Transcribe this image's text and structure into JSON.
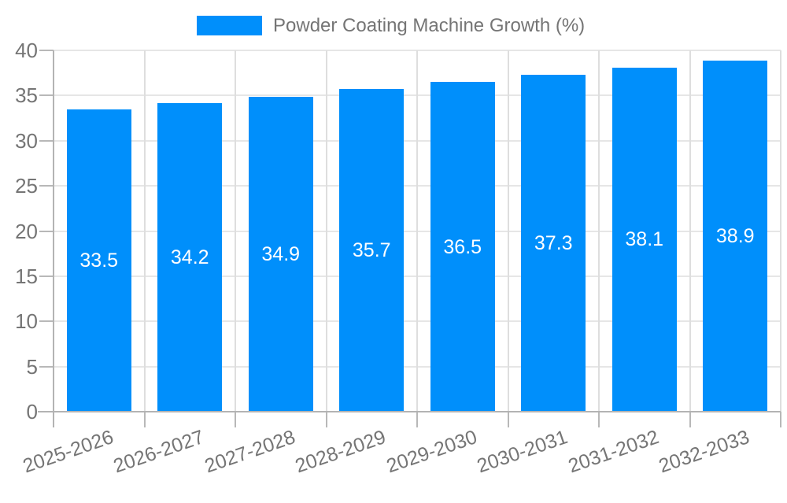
{
  "legend": {
    "label": "Powder Coating Machine Growth (%)",
    "swatch_color": "#008FFB"
  },
  "chart_data": {
    "type": "bar",
    "title": "",
    "legend_position": "top",
    "grid": true,
    "categories": [
      "2025-2026",
      "2026-2027",
      "2027-2028",
      "2028-2029",
      "2029-2030",
      "2030-2031",
      "2031-2032",
      "2032-2033"
    ],
    "series": [
      {
        "name": "Powder Coating Machine Growth (%)",
        "values": [
          33.5,
          34.2,
          34.9,
          35.7,
          36.5,
          37.3,
          38.1,
          38.9
        ]
      }
    ],
    "value_labels": [
      "33.5",
      "34.2",
      "34.9",
      "35.7",
      "36.5",
      "37.3",
      "38.1",
      "38.9"
    ],
    "xlabel": "",
    "ylabel": "",
    "y_ticks": [
      0,
      5,
      10,
      15,
      20,
      25,
      30,
      35,
      40
    ],
    "ylim": [
      0,
      40
    ],
    "bar_color": "#008FFB",
    "axis_label_color": "#757575",
    "value_label_color": "#ffffff",
    "gridline_color": "#e6e6e6",
    "axis_line_color": "#b3b3b3"
  }
}
